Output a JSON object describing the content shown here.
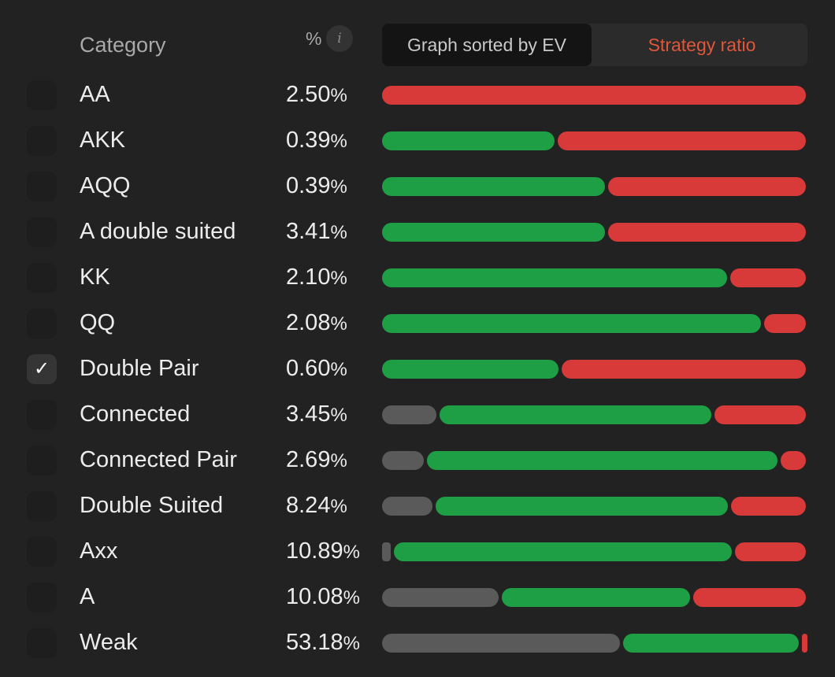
{
  "header": {
    "category_label": "Category",
    "percent_label": "%",
    "info_glyph": "i",
    "tabs": {
      "graph_ev": "Graph sorted by EV",
      "strategy_ratio": "Strategy ratio"
    },
    "active_tab": "strategy_ratio"
  },
  "colors": {
    "fold": "#5a5a5a",
    "call": "#1e9e45",
    "raise": "#d83a3a",
    "accent": "#e2563a",
    "background": "#222222"
  },
  "rows": [
    {
      "label": "AA",
      "value": "2.50",
      "unit": "%",
      "checked": false,
      "ratio": {
        "fold": 0,
        "call": 0,
        "raise": 100
      }
    },
    {
      "label": "AKK",
      "value": "0.39",
      "unit": "%",
      "checked": false,
      "ratio": {
        "fold": 0,
        "call": 41,
        "raise": 59
      }
    },
    {
      "label": "AQQ",
      "value": "0.39",
      "unit": "%",
      "checked": false,
      "ratio": {
        "fold": 0,
        "call": 53,
        "raise": 47
      }
    },
    {
      "label": "A double suited",
      "value": "3.41",
      "unit": "%",
      "checked": false,
      "ratio": {
        "fold": 0,
        "call": 53,
        "raise": 47
      }
    },
    {
      "label": "KK",
      "value": "2.10",
      "unit": "%",
      "checked": false,
      "ratio": {
        "fold": 0,
        "call": 82,
        "raise": 18
      }
    },
    {
      "label": "QQ",
      "value": "2.08",
      "unit": "%",
      "checked": false,
      "ratio": {
        "fold": 0,
        "call": 90,
        "raise": 10
      }
    },
    {
      "label": "Double Pair",
      "value": "0.60",
      "unit": "%",
      "checked": true,
      "ratio": {
        "fold": 0,
        "call": 42,
        "raise": 58
      }
    },
    {
      "label": "Connected",
      "value": "3.45",
      "unit": "%",
      "checked": false,
      "ratio": {
        "fold": 13,
        "call": 65,
        "raise": 22
      }
    },
    {
      "label": "Connected Pair",
      "value": "2.69",
      "unit": "%",
      "checked": false,
      "ratio": {
        "fold": 10,
        "call": 84,
        "raise": 6
      }
    },
    {
      "label": "Double Suited",
      "value": "8.24",
      "unit": "%",
      "checked": false,
      "ratio": {
        "fold": 12,
        "call": 70,
        "raise": 18
      }
    },
    {
      "label": "Axx",
      "value": "10.89",
      "unit": "%",
      "checked": false,
      "ratio": {
        "fold": 2,
        "call": 81,
        "raise": 17
      }
    },
    {
      "label": "A",
      "value": "10.08",
      "unit": "%",
      "checked": false,
      "ratio": {
        "fold": 28,
        "call": 45,
        "raise": 27
      }
    },
    {
      "label": "Weak",
      "value": "53.18",
      "unit": "%",
      "checked": false,
      "ratio": {
        "fold": 57,
        "call": 42,
        "raise": 1
      }
    }
  ]
}
